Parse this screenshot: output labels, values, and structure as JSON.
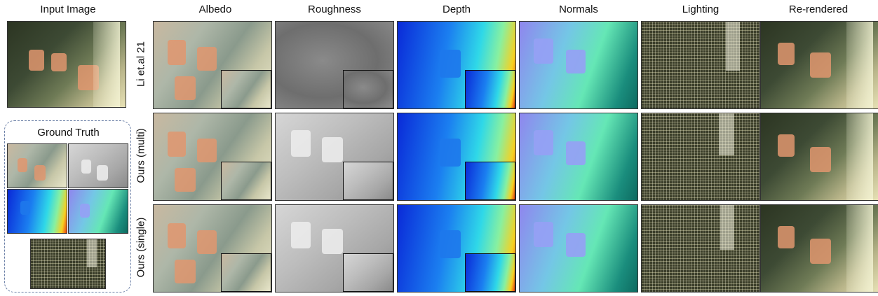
{
  "columns": {
    "input": "Input Image",
    "albedo": "Albedo",
    "roughness": "Roughness",
    "depth": "Depth",
    "normals": "Normals",
    "lighting": "Lighting",
    "rerendered": "Re-rendered"
  },
  "ground_truth_label": "Ground Truth",
  "rows": [
    {
      "label": "Li et.al 21"
    },
    {
      "label": "Ours (multi)"
    },
    {
      "label": "Ours (single)"
    }
  ]
}
